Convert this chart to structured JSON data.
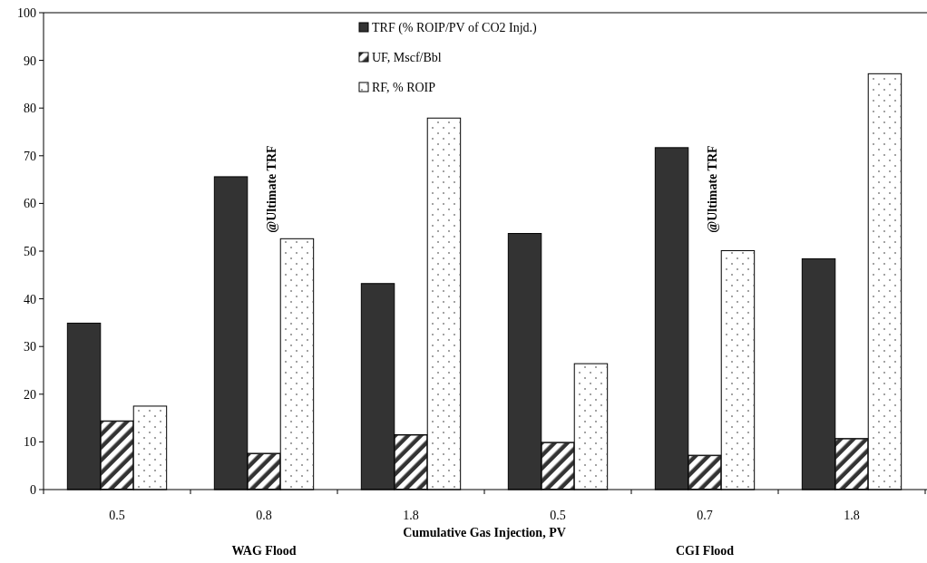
{
  "chart_data": {
    "type": "bar",
    "categories": [
      "0.5",
      "0.8",
      "1.8",
      "0.5",
      "0.7",
      "1.8"
    ],
    "xlabel": "Cumulative Gas Injection, PV",
    "series": [
      {
        "name": "TRF (% ROIP/PV of CO2 Injd.)",
        "color": "#333333",
        "values": [
          34.9,
          65.6,
          43.2,
          53.7,
          71.7,
          48.4
        ]
      },
      {
        "name": "UF, Mscf/Bbl",
        "color": "#333333",
        "values": [
          14.4,
          7.6,
          11.5,
          9.9,
          7.2,
          10.7
        ]
      },
      {
        "name": "RF, % ROIP",
        "color": "#ffffff",
        "values": [
          17.5,
          52.6,
          77.9,
          26.4,
          50.1,
          87.2
        ]
      }
    ],
    "ylim": [
      0,
      100
    ],
    "yticks": [
      0,
      10,
      20,
      30,
      40,
      50,
      60,
      70,
      80,
      90,
      100
    ],
    "legend": "top",
    "annotations": [
      "@Ultimate TRF",
      "@Ultimate TRF",
      "WAG Flood",
      "CGI Flood"
    ]
  }
}
